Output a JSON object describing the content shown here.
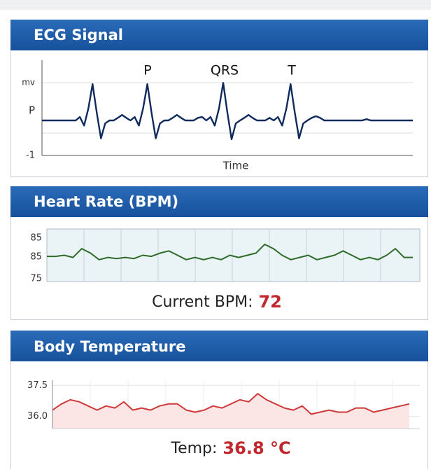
{
  "panels": [
    {
      "title": "ECG Signal",
      "y_labels": [
        "mv",
        "P"
      ],
      "yticks": [
        -1
      ],
      "ylim": [
        -1,
        1
      ],
      "annotations": [
        "P",
        "QRS",
        "T"
      ],
      "x_label": "Time",
      "values": [
        -0.18,
        -0.18,
        -0.18,
        -0.18,
        -0.18,
        -0.18,
        -0.18,
        -0.18,
        -0.18,
        -0.1,
        -0.3,
        0.1,
        0.67,
        0.0,
        -0.6,
        -0.25,
        -0.18,
        -0.18,
        -0.12,
        -0.05,
        -0.12,
        -0.18,
        -0.1,
        -0.3,
        0.1,
        0.67,
        0.0,
        -0.6,
        -0.25,
        -0.18,
        -0.18,
        -0.12,
        -0.05,
        -0.12,
        -0.18,
        -0.18,
        -0.18,
        -0.12,
        -0.1,
        -0.18,
        -0.1,
        -0.3,
        0.1,
        0.7,
        0.0,
        -0.62,
        -0.25,
        -0.18,
        -0.12,
        -0.05,
        -0.12,
        -0.18,
        -0.18,
        -0.18,
        -0.12,
        -0.18,
        -0.1,
        -0.3,
        0.1,
        0.67,
        0.0,
        -0.6,
        -0.25,
        -0.18,
        -0.12,
        -0.08,
        -0.12,
        -0.18,
        -0.18,
        -0.18,
        -0.18,
        -0.18,
        -0.18,
        -0.18,
        -0.18,
        -0.18,
        -0.18,
        -0.15,
        -0.18,
        -0.18,
        -0.18,
        -0.18,
        -0.18,
        -0.18,
        -0.18,
        -0.18,
        -0.18,
        -0.18,
        -0.18
      ]
    },
    {
      "title": "Heart Rate (BPM)",
      "y_labels": [
        "85",
        "85",
        "75"
      ],
      "ylim": [
        74,
        98
      ],
      "values": [
        85.5,
        85.5,
        86,
        85,
        89,
        87,
        84,
        85,
        84.5,
        85,
        84.5,
        86,
        85.5,
        87,
        88,
        86,
        84,
        85,
        84,
        85,
        84,
        86,
        85,
        86,
        87,
        91,
        89,
        86,
        84,
        85,
        86,
        84,
        85,
        86,
        88,
        86,
        84,
        85,
        84,
        86,
        89,
        85,
        85
      ],
      "readout": {
        "label": "Current BPM:",
        "value": 72
      }
    },
    {
      "title": "Body Temperature",
      "yticks": [
        37.5,
        {
          "value": 36,
          "label": "36.0"
        }
      ],
      "ylim": [
        35.4,
        37.75
      ],
      "values": [
        36.3,
        36.6,
        36.8,
        36.7,
        36.5,
        36.3,
        36.5,
        36.4,
        36.7,
        36.3,
        36.4,
        36.3,
        36.5,
        36.6,
        36.6,
        36.3,
        36.2,
        36.3,
        36.5,
        36.4,
        36.6,
        36.8,
        36.7,
        37.1,
        36.8,
        36.6,
        36.4,
        36.3,
        36.5,
        36.1,
        36.2,
        36.3,
        36.2,
        36.2,
        36.4,
        36.4,
        36.2,
        36.3,
        36.4,
        36.5,
        36.6
      ],
      "readout": {
        "label": "Temp:",
        "value": "36.8 °C"
      }
    }
  ]
}
